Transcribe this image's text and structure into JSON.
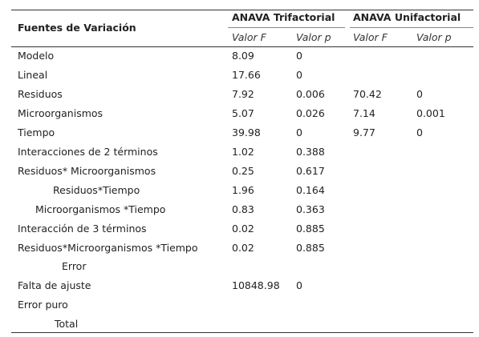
{
  "table": {
    "header": {
      "title": "Fuentes de Variación",
      "groups": [
        {
          "title": "ANAVA Trifactorial",
          "columns": [
            "Valor F",
            "Valor p"
          ]
        },
        {
          "title": "ANAVA Unifactorial",
          "columns": [
            "Valor F",
            "Valor p"
          ]
        }
      ]
    },
    "rows": [
      {
        "label": "Modelo",
        "values": [
          8.09,
          0,
          null,
          null
        ]
      },
      {
        "label": "Lineal",
        "values": [
          17.66,
          0,
          null,
          null
        ]
      },
      {
        "label": "Residuos",
        "values": [
          7.92,
          0.006,
          70.42,
          0
        ]
      },
      {
        "label": "Microorganismos",
        "values": [
          5.07,
          0.026,
          7.14,
          0.001
        ]
      },
      {
        "label": "Tiempo",
        "values": [
          39.98,
          0,
          9.77,
          0
        ]
      },
      {
        "label": "Interacciones de 2 términos",
        "values": [
          1.02,
          0.388,
          null,
          null
        ]
      },
      {
        "label": "Residuos* Microorganismos",
        "values": [
          0.25,
          0.617,
          null,
          null
        ]
      },
      {
        "label": "Residuos*Tiempo",
        "values": [
          1.96,
          0.164,
          null,
          null
        ]
      },
      {
        "label": "Microorganismos *Tiempo",
        "values": [
          0.83,
          0.363,
          null,
          null
        ]
      },
      {
        "label": "Interacción de 3 términos",
        "values": [
          0.02,
          0.885,
          null,
          null
        ]
      },
      {
        "label": "Residuos*Microorganismos *Tiempo",
        "values": [
          0.02,
          0.885,
          null,
          null
        ]
      },
      {
        "label": "Error",
        "values": [
          null,
          null,
          null,
          null
        ]
      },
      {
        "label": "Falta de ajuste",
        "values": [
          10848.98,
          0,
          null,
          null
        ]
      },
      {
        "label": "Error puro",
        "values": [
          null,
          null,
          null,
          null
        ]
      },
      {
        "label": "Total",
        "values": [
          null,
          null,
          null,
          null
        ]
      }
    ]
  }
}
